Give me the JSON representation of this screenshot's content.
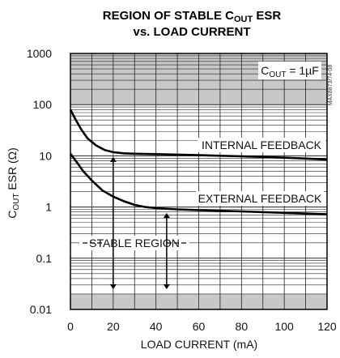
{
  "chart_data": {
    "type": "line",
    "title_line1": "REGION OF STABLE C",
    "title_sub": "OUT",
    "title_line1_end": " ESR",
    "title_line2": "vs. LOAD CURRENT",
    "xlabel": "LOAD CURRENT (mA)",
    "ylabel_main": "C",
    "ylabel_sub": "OUT",
    "ylabel_end": " ESR (Ω)",
    "x_ticks": [
      0,
      20,
      40,
      60,
      80,
      100,
      120
    ],
    "y_ticks": [
      {
        "value": 0.01,
        "label": "0.01"
      },
      {
        "value": 0.1,
        "label": "0.1"
      },
      {
        "value": 1,
        "label": "1"
      },
      {
        "value": 10,
        "label": "10"
      },
      {
        "value": 100,
        "label": "100"
      },
      {
        "value": 1000,
        "label": "1000"
      }
    ],
    "xlim": [
      0,
      120
    ],
    "ylim": [
      0.01,
      1000
    ],
    "y_scale": "log",
    "grid": true,
    "series": [
      {
        "name": "INTERNAL FEEDBACK",
        "points": [
          [
            0,
            80
          ],
          [
            2,
            55
          ],
          [
            5,
            33
          ],
          [
            8,
            22
          ],
          [
            12,
            16
          ],
          [
            16,
            13
          ],
          [
            20,
            11.8
          ],
          [
            25,
            11.2
          ],
          [
            30,
            11
          ],
          [
            40,
            10.8
          ],
          [
            60,
            10.3
          ],
          [
            80,
            9.8
          ],
          [
            100,
            9.2
          ],
          [
            120,
            8.5
          ]
        ]
      },
      {
        "name": "EXTERNAL FEEDBACK",
        "points": [
          [
            0,
            11
          ],
          [
            3,
            7.5
          ],
          [
            6,
            5
          ],
          [
            10,
            3.3
          ],
          [
            15,
            2.1
          ],
          [
            20,
            1.6
          ],
          [
            25,
            1.3
          ],
          [
            30,
            1.1
          ],
          [
            35,
            1.0
          ],
          [
            40,
            0.95
          ],
          [
            50,
            0.9
          ],
          [
            60,
            0.87
          ],
          [
            80,
            0.82
          ],
          [
            100,
            0.77
          ],
          [
            120,
            0.72
          ]
        ]
      }
    ],
    "shaded_bands": [
      {
        "from": 100,
        "to": 1000
      },
      {
        "from": 0.01,
        "to": 0.02
      }
    ],
    "annotations": {
      "cout_main": "C",
      "cout_sub": "OUT",
      "cout_end": " = 1µF",
      "part_number": "MAX8873/74-08",
      "internal_label": "INTERNAL FEEDBACK",
      "external_label": "EXTERNAL FEEDBACK",
      "stable_label": "STABLE REGION"
    },
    "arrows": [
      {
        "x": 20,
        "y_from": 0.02,
        "y_to": 11.8
      },
      {
        "x": 45,
        "y_from": 0.02,
        "y_to": 0.95
      }
    ]
  }
}
